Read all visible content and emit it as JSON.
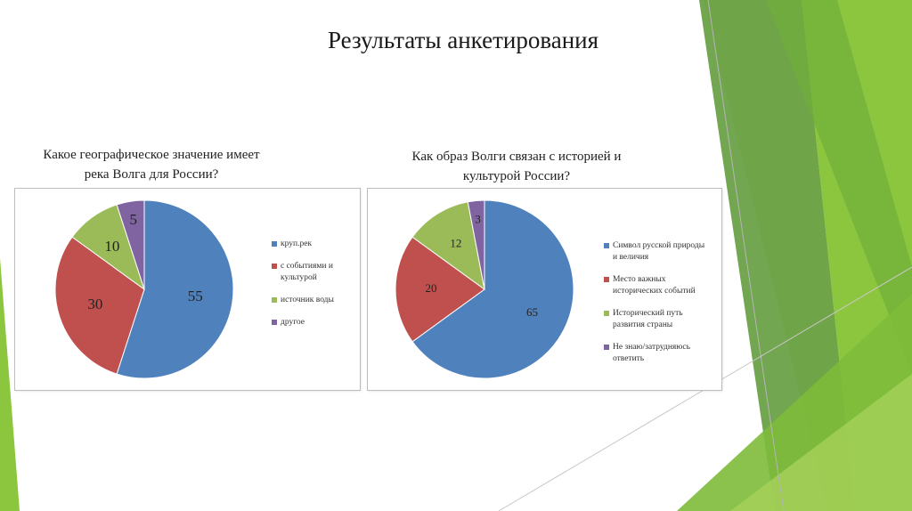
{
  "slide": {
    "title": "Результаты анкетирования"
  },
  "colors": {
    "blue": "#4f81bd",
    "red": "#c0504d",
    "green": "#9bbb59",
    "purple": "#8064a2",
    "deco_dark": "#5a9631",
    "deco_light": "#8cc63f",
    "deco_pale": "#c9e39a"
  },
  "chart_data": [
    {
      "type": "pie",
      "title_lines": [
        "Какое географическое значение имеет",
        "река Волга для России?"
      ],
      "categories": [
        "круп.рек",
        "с событиями и культурой",
        "источник воды",
        "другое"
      ],
      "legend_lines": [
        [
          "круп.рек"
        ],
        [
          "с событиями и",
          "культурой"
        ],
        [
          "источник воды"
        ],
        [
          "другое"
        ]
      ],
      "values": [
        55,
        30,
        10,
        5
      ],
      "colors": [
        "#4f81bd",
        "#c0504d",
        "#9bbb59",
        "#8064a2"
      ]
    },
    {
      "type": "pie",
      "title_lines": [
        "Как образ Волги связан с историей и",
        "культурой России?"
      ],
      "categories": [
        "Символ русской природы и величия",
        "Место важных исторических событий",
        "Исторический путь развития страны",
        "Не знаю/затрудняюсь ответить"
      ],
      "legend_lines": [
        [
          "Символ русской природы",
          "и величия"
        ],
        [
          "Место важных",
          "исторических событий"
        ],
        [
          "Исторический путь",
          "развития страны"
        ],
        [
          "Не знаю/затрудняюсь",
          "ответить"
        ]
      ],
      "values": [
        65,
        20,
        12,
        3
      ],
      "colors": [
        "#4f81bd",
        "#c0504d",
        "#9bbb59",
        "#8064a2"
      ]
    }
  ]
}
